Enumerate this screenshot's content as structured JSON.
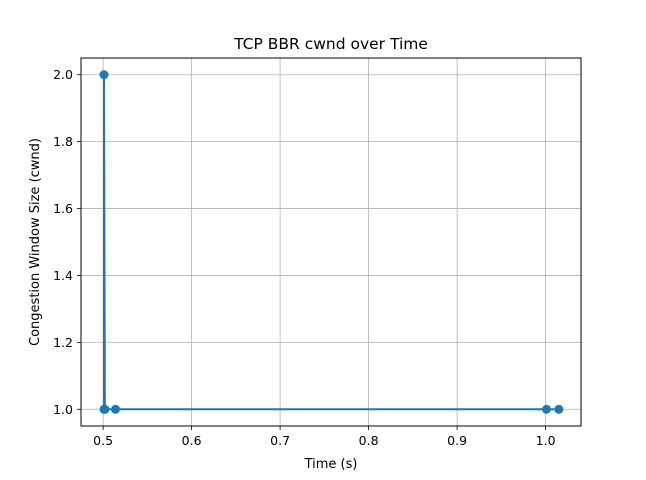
{
  "chart_data": {
    "type": "line",
    "title": "TCP BBR cwnd over Time",
    "xlabel": "Time (s)",
    "ylabel": "Congestion Window Size (cwnd)",
    "xlim": [
      0.475,
      1.04
    ],
    "ylim": [
      0.95,
      2.05
    ],
    "xticks": [
      0.5,
      0.6,
      0.7,
      0.8,
      0.9,
      1.0
    ],
    "xtick_labels": [
      "0.5",
      "0.6",
      "0.7",
      "0.8",
      "0.9",
      "1.0"
    ],
    "yticks": [
      1.0,
      1.2,
      1.4,
      1.6,
      1.8,
      2.0
    ],
    "ytick_labels": [
      "1.0",
      "1.2",
      "1.4",
      "1.6",
      "1.8",
      "2.0"
    ],
    "grid": true,
    "series": [
      {
        "color": "#1f77b4",
        "marker": "circle",
        "x": [
          0.501,
          0.501,
          0.502,
          0.514,
          1.001,
          1.015
        ],
        "y": [
          1.0,
          2.0,
          1.0,
          1.0,
          1.0,
          1.0
        ]
      }
    ]
  }
}
